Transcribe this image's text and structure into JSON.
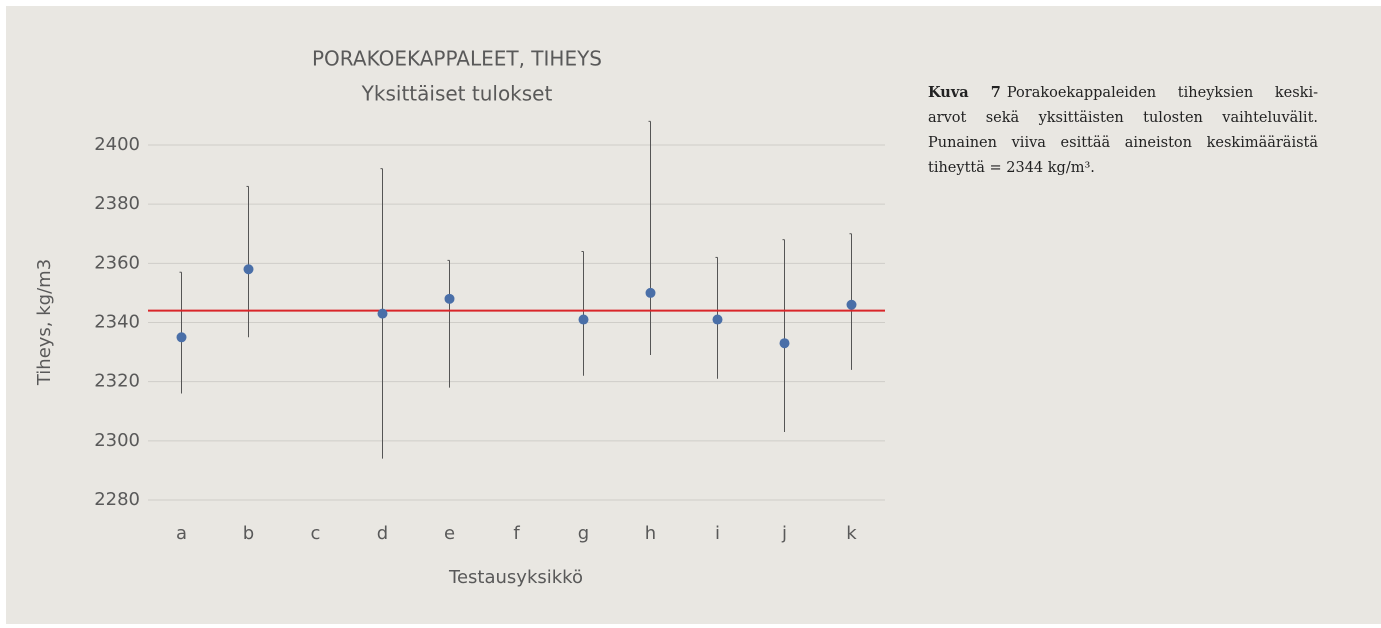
{
  "chart_data": {
    "type": "errorbar",
    "title": "PORAKOEKAPPALEET, TIHEYS",
    "subtitle": "Yksittäiset tulokset",
    "x_label": "Testausyksikkö",
    "y_label": "Tiheys, kg/m3",
    "categories": [
      "a",
      "b",
      "c",
      "d",
      "e",
      "f",
      "g",
      "h",
      "i",
      "j",
      "k"
    ],
    "series": [
      {
        "color": "#4a6fa8",
        "values": [
          2335,
          2358,
          null,
          2343,
          2348,
          null,
          2341,
          2350,
          2341,
          2333,
          2346
        ],
        "low": [
          2316,
          2335,
          null,
          2294,
          2318,
          null,
          2322,
          2329,
          2321,
          2303,
          2324
        ],
        "high": [
          2357,
          2386,
          null,
          2392,
          2361,
          null,
          2364,
          2408,
          2362,
          2368,
          2370
        ]
      }
    ],
    "mean_line": {
      "value": 2344,
      "color": "#d9262a"
    },
    "ylim": [
      2280,
      2400
    ],
    "yticks": [
      2280,
      2300,
      2320,
      2340,
      2360,
      2380,
      2400
    ],
    "grid": true
  },
  "caption": {
    "label": "Kuva 7",
    "lines": [
      "Porakoekappaleiden tiheyksien keski-",
      "arvot sekä yksittäisten tulosten vaihteluvälit.",
      "Punainen viiva esittää aineiston keskimääräistä",
      "tiheyttä = 2344 kg/m³."
    ]
  }
}
